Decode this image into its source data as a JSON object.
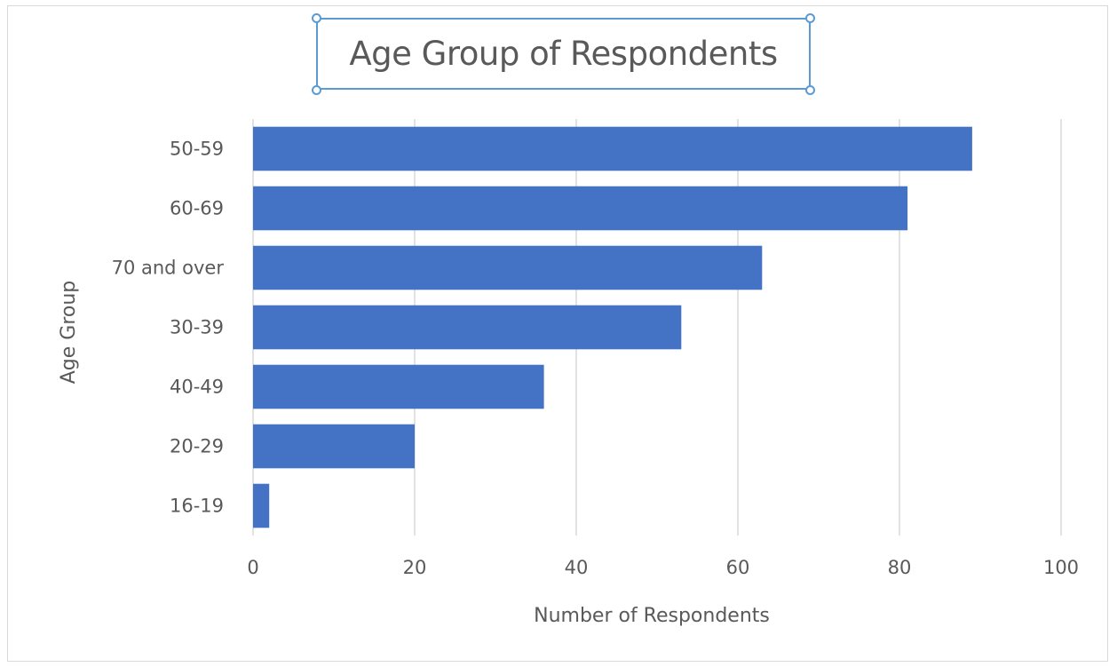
{
  "chart_data": {
    "type": "bar",
    "orientation": "horizontal",
    "title": "Age Group of Respondents",
    "xlabel": "Number of Respondents",
    "ylabel": "Age Group",
    "categories": [
      "50-59",
      "60-69",
      "70 and over",
      "30-39",
      "40-49",
      "20-29",
      "16-19"
    ],
    "values": [
      89,
      81,
      63,
      53,
      36,
      20,
      2
    ],
    "xlim": [
      0,
      100
    ],
    "xticks": [
      0,
      20,
      40,
      60,
      80,
      100
    ],
    "grid": true,
    "bar_color": "#4472c4",
    "title_selected": true
  },
  "colors": {
    "bar": "#4472c4",
    "gridline": "#d9d9d9",
    "text": "#595959",
    "selection": "#5b9bd5"
  }
}
